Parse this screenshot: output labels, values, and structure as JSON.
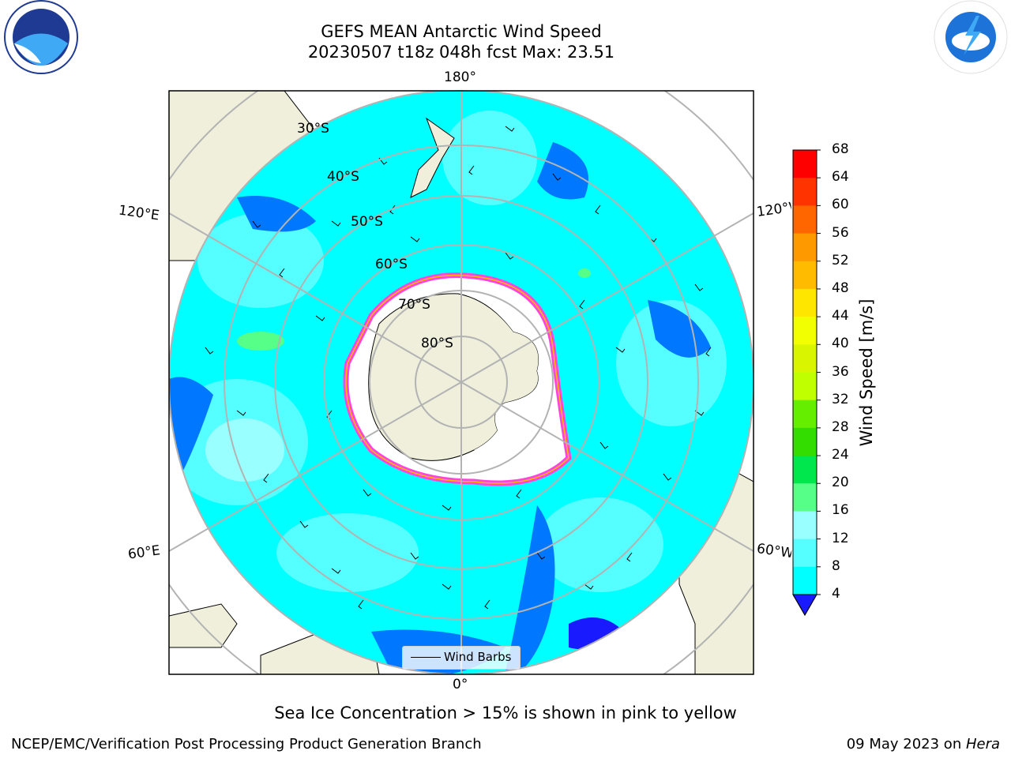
{
  "title_line1": "GEFS MEAN Antarctic Wind Speed",
  "title_line2": "20230507 t18z 048h fcst   Max: 23.51",
  "longitude_labels": {
    "top": "180°",
    "bottom": "0°",
    "left_upper": "120°E",
    "left_lower": "60°E",
    "right_upper": "120°W",
    "right_lower": "60°W"
  },
  "latitude_labels": [
    "30°S",
    "40°S",
    "50°S",
    "60°S",
    "70°S",
    "80°S"
  ],
  "legend_label": "Wind Barbs",
  "colorbar": {
    "label": "Wind Speed [m/s]",
    "ticks": [
      "68",
      "64",
      "60",
      "56",
      "52",
      "48",
      "44",
      "40",
      "36",
      "32",
      "28",
      "24",
      "20",
      "16",
      "12",
      "8",
      "4"
    ],
    "colors": [
      "#ff0000",
      "#ff3300",
      "#ff6600",
      "#ff9900",
      "#ffbb00",
      "#ffe600",
      "#f2ff00",
      "#d9f500",
      "#bfff00",
      "#66ee00",
      "#33dd00",
      "#00e64d",
      "#55ff88",
      "#99ffff",
      "#55ffff",
      "#00ffff",
      "#0077ff"
    ],
    "under_color": "#1a1aff"
  },
  "subtitle": "Sea Ice Concentration > 15% is shown in pink to yellow",
  "footer_left": "NCEP/EMC/Verification Post Processing Product Generation Branch",
  "footer_date": "09 May 2023 on ",
  "footer_machine": "Hera",
  "logos": {
    "left": "NOAA",
    "right": "NATIONAL WEATHER SERVICE"
  }
}
